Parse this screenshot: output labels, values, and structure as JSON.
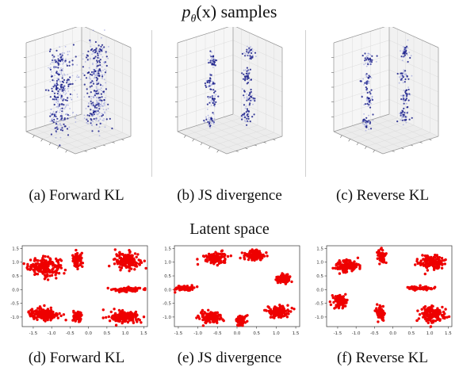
{
  "top_title_prefix": "p",
  "top_title_subscript": "θ",
  "top_title_arg": "(x)",
  "top_title_suffix": " samples",
  "bottom_title": "Latent space",
  "colors": {
    "sample_dark": "#1a1f8a",
    "sample_light": "#8e95d8",
    "latent_point": "#ee0000",
    "axis_edge": "#999999",
    "pane_grid": "#dcdcdc"
  },
  "panels_3d": [
    {
      "caption": "(a) Forward KL"
    },
    {
      "caption": "(b) JS divergence"
    },
    {
      "caption": "(c) Reverse KL"
    }
  ],
  "chart_data": [
    {
      "type": "scatter",
      "caption": "(d) Forward KL",
      "title": "",
      "xlabel": "",
      "ylabel": "",
      "xlim": [
        -1.8,
        1.6
      ],
      "ylim": [
        -1.35,
        1.6
      ],
      "xticks": [
        "-1.5",
        "-1.0",
        "-0.5",
        "0.0",
        "0.5",
        "1.0",
        "1.5"
      ],
      "xtick_values": [
        -1.5,
        -1.0,
        -0.5,
        0.0,
        0.5,
        1.0,
        1.5
      ],
      "yticks": [
        "1.5",
        "1.0",
        "0.5",
        "0.0",
        "-0.5",
        "-1.0"
      ],
      "ytick_values": [
        1.5,
        1.0,
        0.5,
        0.0,
        -0.5,
        -1.0
      ],
      "grid": false,
      "clusters": [
        {
          "cx": -1.2,
          "cy": 0.85,
          "sx": 0.22,
          "sy": 0.16,
          "n": 200
        },
        {
          "cx": -0.3,
          "cy": 1.05,
          "sx": 0.07,
          "sy": 0.13,
          "n": 80
        },
        {
          "cx": 1.05,
          "cy": 1.05,
          "sx": 0.17,
          "sy": 0.15,
          "n": 150
        },
        {
          "cx": 1.05,
          "cy": 0.0,
          "sx": 0.18,
          "sy": 0.04,
          "n": 110
        },
        {
          "cx": -1.2,
          "cy": -0.9,
          "sx": 0.2,
          "sy": 0.1,
          "n": 200
        },
        {
          "cx": -0.3,
          "cy": -1.0,
          "sx": 0.06,
          "sy": 0.1,
          "n": 70
        },
        {
          "cx": 1.0,
          "cy": -1.0,
          "sx": 0.19,
          "sy": 0.1,
          "n": 180
        }
      ]
    },
    {
      "type": "scatter",
      "caption": "(e) JS divergence",
      "title": "",
      "xlabel": "",
      "ylabel": "",
      "xlim": [
        -1.6,
        1.6
      ],
      "ylim": [
        -1.35,
        1.6
      ],
      "xticks": [
        "-1.5",
        "-1.0",
        "-0.5",
        "0.0",
        "0.5",
        "1.0",
        "1.5"
      ],
      "xtick_values": [
        -1.5,
        -1.0,
        -0.5,
        0.0,
        0.5,
        1.0,
        1.5
      ],
      "yticks": [
        "1.5",
        "1.0",
        "0.5",
        "0.0",
        "-0.5",
        "-1.0"
      ],
      "ytick_values": [
        1.5,
        1.0,
        0.5,
        0.0,
        -0.5,
        -1.0
      ],
      "grid": false,
      "clusters": [
        {
          "cx": -1.35,
          "cy": 0.05,
          "sx": 0.13,
          "sy": 0.05,
          "n": 70
        },
        {
          "cx": -0.55,
          "cy": 1.15,
          "sx": 0.14,
          "sy": 0.1,
          "n": 130
        },
        {
          "cx": 0.45,
          "cy": 1.25,
          "sx": 0.12,
          "sy": 0.1,
          "n": 130
        },
        {
          "cx": 1.2,
          "cy": 0.4,
          "sx": 0.1,
          "sy": 0.06,
          "n": 90
        },
        {
          "cx": -0.7,
          "cy": -1.0,
          "sx": 0.14,
          "sy": 0.1,
          "n": 140
        },
        {
          "cx": 0.1,
          "cy": -1.15,
          "sx": 0.06,
          "sy": 0.1,
          "n": 80
        },
        {
          "cx": 1.05,
          "cy": -0.8,
          "sx": 0.14,
          "sy": 0.1,
          "n": 130
        }
      ]
    },
    {
      "type": "scatter",
      "caption": "(f) Reverse KL",
      "title": "",
      "xlabel": "",
      "ylabel": "",
      "xlim": [
        -1.8,
        1.6
      ],
      "ylim": [
        -1.35,
        1.6
      ],
      "xticks": [
        "-1.5",
        "-1.0",
        "-0.5",
        "0.0",
        "0.5",
        "1.0",
        "1.5"
      ],
      "xtick_values": [
        -1.5,
        -1.0,
        -0.5,
        0.0,
        0.5,
        1.0,
        1.5
      ],
      "yticks": [
        "1.5",
        "1.0",
        "0.5",
        "0.0",
        "-0.5",
        "-1.0"
      ],
      "ytick_values": [
        1.5,
        1.0,
        0.5,
        0.0,
        -0.5,
        -1.0
      ],
      "grid": false,
      "clusters": [
        {
          "cx": -1.25,
          "cy": 0.85,
          "sx": 0.16,
          "sy": 0.12,
          "n": 130
        },
        {
          "cx": -0.3,
          "cy": 1.2,
          "sx": 0.06,
          "sy": 0.12,
          "n": 70
        },
        {
          "cx": 1.05,
          "cy": 1.0,
          "sx": 0.17,
          "sy": 0.13,
          "n": 140
        },
        {
          "cx": 0.75,
          "cy": 0.05,
          "sx": 0.18,
          "sy": 0.03,
          "n": 80
        },
        {
          "cx": -1.45,
          "cy": -0.45,
          "sx": 0.09,
          "sy": 0.12,
          "n": 90
        },
        {
          "cx": -0.35,
          "cy": -0.85,
          "sx": 0.06,
          "sy": 0.12,
          "n": 70
        },
        {
          "cx": 1.05,
          "cy": -0.9,
          "sx": 0.17,
          "sy": 0.13,
          "n": 150
        }
      ]
    }
  ]
}
